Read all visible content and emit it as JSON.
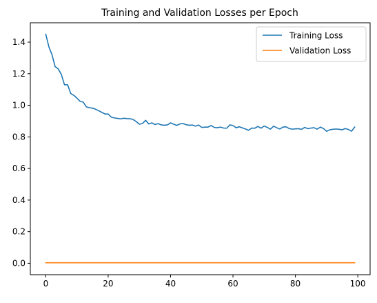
{
  "chart_data": {
    "type": "line",
    "title": "Training and Validation Losses per Epoch",
    "xlabel": "",
    "ylabel": "",
    "xlim": [
      -4.95,
      103.95
    ],
    "ylim": [
      -0.0725,
      1.5225
    ],
    "xticks": [
      0,
      20,
      40,
      60,
      80,
      100
    ],
    "xtick_labels": [
      "0",
      "20",
      "40",
      "60",
      "80",
      "100"
    ],
    "yticks": [
      0.0,
      0.2,
      0.4,
      0.6,
      0.8,
      1.0,
      1.2,
      1.4
    ],
    "ytick_labels": [
      "0.0",
      "0.2",
      "0.4",
      "0.6",
      "0.8",
      "1.0",
      "1.2",
      "1.4"
    ],
    "grid": false,
    "legend_position": "upper right",
    "series": [
      {
        "name": "Training Loss",
        "color": "#1f77b4",
        "x": [
          0,
          1,
          2,
          3,
          4,
          5,
          6,
          7,
          8,
          9,
          10,
          11,
          12,
          13,
          14,
          15,
          16,
          17,
          18,
          19,
          20,
          21,
          22,
          23,
          24,
          25,
          26,
          27,
          28,
          29,
          30,
          31,
          32,
          33,
          34,
          35,
          36,
          37,
          38,
          39,
          40,
          41,
          42,
          43,
          44,
          45,
          46,
          47,
          48,
          49,
          50,
          51,
          52,
          53,
          54,
          55,
          56,
          57,
          58,
          59,
          60,
          61,
          62,
          63,
          64,
          65,
          66,
          67,
          68,
          69,
          70,
          71,
          72,
          73,
          74,
          75,
          76,
          77,
          78,
          79,
          80,
          81,
          82,
          83,
          84,
          85,
          86,
          87,
          88,
          89,
          90,
          91,
          92,
          93,
          94,
          95,
          96,
          97,
          98,
          99
        ],
        "values": [
          1.45,
          1.37,
          1.32,
          1.245,
          1.23,
          1.195,
          1.13,
          1.13,
          1.075,
          1.063,
          1.045,
          1.025,
          1.02,
          0.99,
          0.985,
          0.982,
          0.975,
          0.965,
          0.955,
          0.945,
          0.945,
          0.925,
          0.92,
          0.917,
          0.914,
          0.918,
          0.916,
          0.915,
          0.91,
          0.897,
          0.88,
          0.885,
          0.905,
          0.882,
          0.889,
          0.878,
          0.884,
          0.876,
          0.874,
          0.876,
          0.889,
          0.88,
          0.873,
          0.882,
          0.885,
          0.877,
          0.874,
          0.875,
          0.868,
          0.875,
          0.86,
          0.862,
          0.862,
          0.872,
          0.86,
          0.858,
          0.862,
          0.856,
          0.855,
          0.876,
          0.872,
          0.858,
          0.864,
          0.857,
          0.85,
          0.842,
          0.856,
          0.855,
          0.866,
          0.855,
          0.869,
          0.86,
          0.849,
          0.868,
          0.858,
          0.85,
          0.862,
          0.864,
          0.853,
          0.849,
          0.851,
          0.852,
          0.848,
          0.86,
          0.852,
          0.856,
          0.858,
          0.849,
          0.862,
          0.853,
          0.835,
          0.845,
          0.848,
          0.85,
          0.848,
          0.845,
          0.853,
          0.847,
          0.836,
          0.862
        ]
      },
      {
        "name": "Validation Loss",
        "color": "#ff7f0e",
        "x": [
          0,
          1,
          2,
          3,
          4,
          5,
          6,
          7,
          8,
          9,
          10,
          11,
          12,
          13,
          14,
          15,
          16,
          17,
          18,
          19,
          20,
          21,
          22,
          23,
          24,
          25,
          26,
          27,
          28,
          29,
          30,
          31,
          32,
          33,
          34,
          35,
          36,
          37,
          38,
          39,
          40,
          41,
          42,
          43,
          44,
          45,
          46,
          47,
          48,
          49,
          50,
          51,
          52,
          53,
          54,
          55,
          56,
          57,
          58,
          59,
          60,
          61,
          62,
          63,
          64,
          65,
          66,
          67,
          68,
          69,
          70,
          71,
          72,
          73,
          74,
          75,
          76,
          77,
          78,
          79,
          80,
          81,
          82,
          83,
          84,
          85,
          86,
          87,
          88,
          89,
          90,
          91,
          92,
          93,
          94,
          95,
          96,
          97,
          98,
          99
        ],
        "values": [
          0.003,
          0.003,
          0.003,
          0.003,
          0.003,
          0.003,
          0.003,
          0.003,
          0.003,
          0.003,
          0.003,
          0.003,
          0.003,
          0.003,
          0.003,
          0.003,
          0.003,
          0.003,
          0.003,
          0.003,
          0.003,
          0.003,
          0.003,
          0.003,
          0.003,
          0.003,
          0.003,
          0.003,
          0.003,
          0.003,
          0.003,
          0.003,
          0.003,
          0.003,
          0.003,
          0.003,
          0.003,
          0.003,
          0.003,
          0.003,
          0.003,
          0.003,
          0.003,
          0.003,
          0.003,
          0.003,
          0.003,
          0.003,
          0.003,
          0.003,
          0.003,
          0.003,
          0.003,
          0.003,
          0.003,
          0.003,
          0.003,
          0.003,
          0.003,
          0.003,
          0.003,
          0.003,
          0.003,
          0.003,
          0.003,
          0.003,
          0.003,
          0.003,
          0.003,
          0.003,
          0.003,
          0.003,
          0.003,
          0.003,
          0.003,
          0.003,
          0.003,
          0.003,
          0.003,
          0.003,
          0.003,
          0.003,
          0.003,
          0.003,
          0.003,
          0.003,
          0.003,
          0.003,
          0.003,
          0.003,
          0.003,
          0.003,
          0.003,
          0.003,
          0.003,
          0.003,
          0.003,
          0.003,
          0.003,
          0.003
        ]
      }
    ]
  }
}
